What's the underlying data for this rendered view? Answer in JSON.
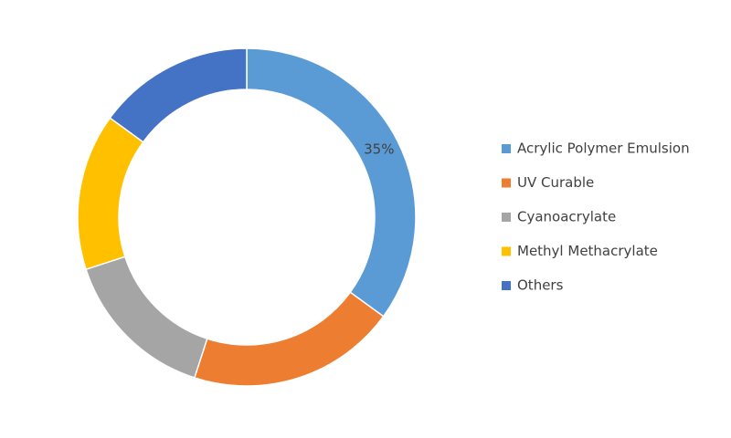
{
  "chart_data": {
    "type": "donut",
    "categories": [
      "Acrylic Polymer Emulsion",
      "UV Curable",
      "Cyanoacrylate",
      "Methyl Methacrylate",
      "Others"
    ],
    "values": [
      35,
      20,
      15,
      15,
      15
    ],
    "value_labels": [
      "35%",
      null,
      null,
      null,
      null
    ],
    "colors": [
      "#5b9bd5",
      "#ed7d31",
      "#a5a5a5",
      "#ffc000",
      "#4472c4"
    ],
    "legend": "right"
  }
}
